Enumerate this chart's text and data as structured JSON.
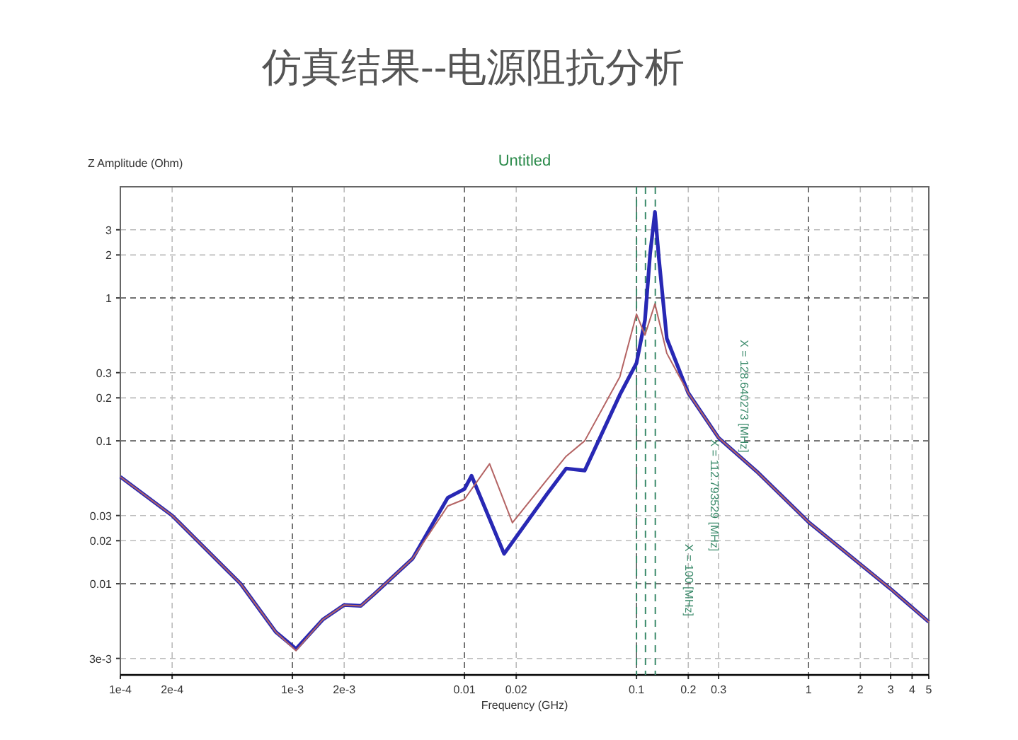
{
  "chart_data": {
    "type": "line",
    "title": "仿真结果--电源阻抗分析",
    "subtitle": "Untitled",
    "xlabel": "Frequency (GHz)",
    "ylabel": "Z Amplitude (Ohm)",
    "log": "xy",
    "grid": true,
    "marker": "none",
    "line_style": "solid",
    "xlim": [
      0.0001,
      5
    ],
    "ylim": [
      0.0023,
      6
    ],
    "xticks": [
      {
        "value": 0.0001,
        "label": "1e-4"
      },
      {
        "value": 0.0002,
        "label": "2e-4"
      },
      {
        "value": 0.001,
        "label": "1e-3"
      },
      {
        "value": 0.002,
        "label": "2e-3"
      },
      0.01,
      0.02,
      0.1,
      0.2,
      0.3,
      1,
      2,
      3,
      4,
      5
    ],
    "yticks": [
      {
        "value": 0.003,
        "label": "3e-3"
      },
      0.01,
      0.02,
      0.03,
      0.1,
      0.2,
      0.3,
      1,
      2,
      3
    ],
    "series": [
      {
        "color": "#2828b4",
        "x": [
          0.0001,
          0.0002,
          0.0005,
          0.0008,
          0.00105,
          0.0015,
          0.002,
          0.0025,
          0.003,
          0.005,
          0.008,
          0.01,
          0.011,
          0.017,
          0.03,
          0.039,
          0.05,
          0.08,
          0.1,
          0.112,
          0.12,
          0.128,
          0.135,
          0.15,
          0.2,
          0.3,
          0.5,
          1,
          3,
          5
        ],
        "values": [
          0.056,
          0.03,
          0.01,
          0.0046,
          0.0035,
          0.0056,
          0.0071,
          0.007,
          0.0085,
          0.015,
          0.04,
          0.046,
          0.057,
          0.0162,
          0.042,
          0.064,
          0.062,
          0.21,
          0.35,
          0.7,
          2.03,
          4.0,
          1.88,
          0.52,
          0.216,
          0.105,
          0.061,
          0.027,
          0.0092,
          0.0054
        ]
      },
      {
        "color": "#b46464",
        "x": [
          0.0001,
          0.0002,
          0.0005,
          0.0008,
          0.00105,
          0.0015,
          0.002,
          0.0025,
          0.003,
          0.005,
          0.008,
          0.01,
          0.014,
          0.019,
          0.03,
          0.039,
          0.05,
          0.08,
          0.1,
          0.112,
          0.128,
          0.15,
          0.2,
          0.3,
          0.5,
          1,
          3,
          5
        ],
        "values": [
          0.056,
          0.03,
          0.01,
          0.0046,
          0.0034,
          0.0056,
          0.0071,
          0.007,
          0.0085,
          0.015,
          0.035,
          0.039,
          0.069,
          0.0267,
          0.053,
          0.078,
          0.1,
          0.28,
          0.77,
          0.55,
          0.91,
          0.41,
          0.216,
          0.105,
          0.061,
          0.027,
          0.0092,
          0.0054
        ]
      }
    ],
    "ref_lines": [
      {
        "axis": "x",
        "value": 0.1,
        "label": "X = 100 [MHz]",
        "color": "#3a8a6a",
        "line_style": "dashed"
      },
      {
        "axis": "x",
        "value": 0.112793529,
        "label": "X = 112.793529 [MHz]",
        "color": "#3a8a6a",
        "line_style": "dashed"
      },
      {
        "axis": "x",
        "value": 0.128640273,
        "label": "X = 128.640273 [MHz]",
        "color": "#3a8a6a",
        "line_style": "dashed"
      }
    ]
  }
}
